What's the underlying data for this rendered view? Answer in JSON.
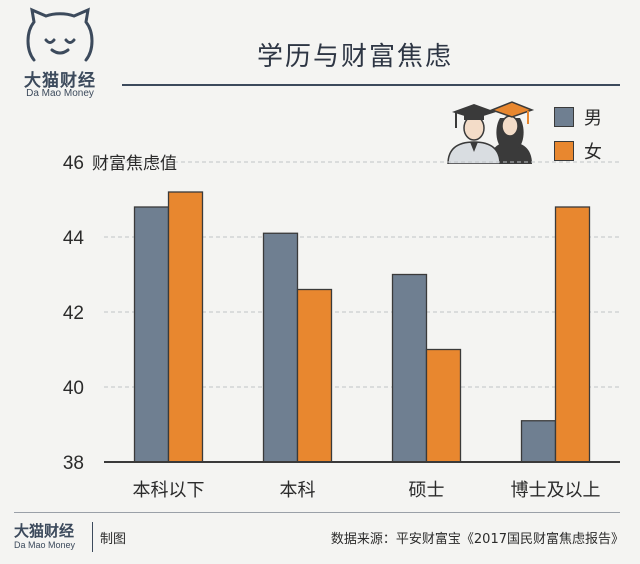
{
  "brand": {
    "name_cn": "大猫财经",
    "name_en": "Da Mao Money"
  },
  "colors": {
    "male": "#6f7f91",
    "female": "#e8872f",
    "axis": "#3a3a3a",
    "grid": "#bfc3c7"
  },
  "legend": {
    "icon": "graduates-icon",
    "items": [
      {
        "label": "男",
        "color": "#6f7f91"
      },
      {
        "label": "女",
        "color": "#e8872f"
      }
    ]
  },
  "footer": {
    "made_label": "制图",
    "source": "数据来源：平安财富宝《2017国民财富焦虑报告》"
  },
  "chart_data": {
    "type": "bar",
    "title": "学历与财富焦虑",
    "ylabel": "财富焦虑值",
    "xlabel": "",
    "categories": [
      "本科以下",
      "本科",
      "硕士",
      "博士及以上"
    ],
    "series": [
      {
        "name": "男",
        "values": [
          44.8,
          44.1,
          43.0,
          39.1
        ]
      },
      {
        "name": "女",
        "values": [
          45.2,
          42.6,
          41.0,
          44.8
        ]
      }
    ],
    "ylim": [
      38,
      46
    ],
    "yticks": [
      38,
      40,
      42,
      44,
      46
    ],
    "grid": true,
    "legend_position": "top-right"
  }
}
